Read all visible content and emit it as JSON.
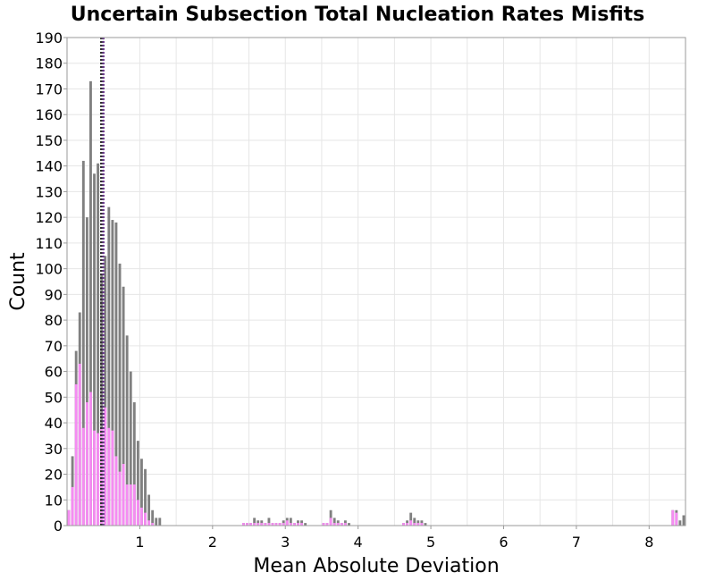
{
  "chart_data": {
    "type": "bar",
    "title": "Uncertain Subsection Total Nucleation Rates Misfits",
    "xlabel": "Mean Absolute Deviation",
    "ylabel": "Count",
    "xlim": [
      0,
      8.5
    ],
    "ylim": [
      0,
      190
    ],
    "x_ticks": [
      "1",
      "2",
      "3",
      "4",
      "5",
      "6",
      "7",
      "8"
    ],
    "y_ticks": [
      "0",
      "10",
      "20",
      "30",
      "40",
      "50",
      "60",
      "70",
      "80",
      "90",
      "100",
      "110",
      "120",
      "130",
      "140",
      "150",
      "160",
      "170",
      "180",
      "190"
    ],
    "grid": true,
    "legend": "none",
    "bin_width": 0.05,
    "colors": {
      "total": "#808080",
      "subset": "#f58cf2",
      "median_line_1": "#333333",
      "median_line_2": "#6a3a8c"
    },
    "vertical_lines": [
      0.47,
      0.5
    ],
    "series": [
      {
        "values": [
          {
            "x": 0.025,
            "y": 6
          },
          {
            "x": 0.075,
            "y": 27
          },
          {
            "x": 0.125,
            "y": 68
          },
          {
            "x": 0.175,
            "y": 83
          },
          {
            "x": 0.225,
            "y": 142
          },
          {
            "x": 0.275,
            "y": 120
          },
          {
            "x": 0.325,
            "y": 173
          },
          {
            "x": 0.375,
            "y": 137
          },
          {
            "x": 0.425,
            "y": 141
          },
          {
            "x": 0.475,
            "y": 98
          },
          {
            "x": 0.525,
            "y": 105
          },
          {
            "x": 0.575,
            "y": 124
          },
          {
            "x": 0.625,
            "y": 119
          },
          {
            "x": 0.675,
            "y": 118
          },
          {
            "x": 0.725,
            "y": 102
          },
          {
            "x": 0.775,
            "y": 93
          },
          {
            "x": 0.825,
            "y": 74
          },
          {
            "x": 0.875,
            "y": 60
          },
          {
            "x": 0.925,
            "y": 48
          },
          {
            "x": 0.975,
            "y": 33
          },
          {
            "x": 1.025,
            "y": 26
          },
          {
            "x": 1.075,
            "y": 22
          },
          {
            "x": 1.125,
            "y": 12
          },
          {
            "x": 1.175,
            "y": 6
          },
          {
            "x": 1.225,
            "y": 3
          },
          {
            "x": 1.275,
            "y": 3
          },
          {
            "x": 2.425,
            "y": 1
          },
          {
            "x": 2.475,
            "y": 1
          },
          {
            "x": 2.525,
            "y": 1
          },
          {
            "x": 2.575,
            "y": 3
          },
          {
            "x": 2.625,
            "y": 2
          },
          {
            "x": 2.675,
            "y": 2
          },
          {
            "x": 2.725,
            "y": 1
          },
          {
            "x": 2.775,
            "y": 3
          },
          {
            "x": 2.825,
            "y": 1
          },
          {
            "x": 2.875,
            "y": 1
          },
          {
            "x": 2.925,
            "y": 1
          },
          {
            "x": 2.975,
            "y": 2
          },
          {
            "x": 3.025,
            "y": 3
          },
          {
            "x": 3.075,
            "y": 3
          },
          {
            "x": 3.125,
            "y": 1
          },
          {
            "x": 3.175,
            "y": 2
          },
          {
            "x": 3.225,
            "y": 2
          },
          {
            "x": 3.275,
            "y": 1
          },
          {
            "x": 3.525,
            "y": 1
          },
          {
            "x": 3.575,
            "y": 1
          },
          {
            "x": 3.625,
            "y": 6
          },
          {
            "x": 3.675,
            "y": 3
          },
          {
            "x": 3.725,
            "y": 2
          },
          {
            "x": 3.775,
            "y": 1
          },
          {
            "x": 3.825,
            "y": 2
          },
          {
            "x": 3.875,
            "y": 1
          },
          {
            "x": 4.625,
            "y": 1
          },
          {
            "x": 4.675,
            "y": 2
          },
          {
            "x": 4.725,
            "y": 5
          },
          {
            "x": 4.775,
            "y": 3
          },
          {
            "x": 4.825,
            "y": 2
          },
          {
            "x": 4.875,
            "y": 2
          },
          {
            "x": 4.925,
            "y": 1
          },
          {
            "x": 8.325,
            "y": 6
          },
          {
            "x": 8.375,
            "y": 6
          },
          {
            "x": 8.425,
            "y": 2
          },
          {
            "x": 8.475,
            "y": 4
          }
        ]
      },
      {
        "values": [
          {
            "x": 0.025,
            "y": 6
          },
          {
            "x": 0.075,
            "y": 15
          },
          {
            "x": 0.125,
            "y": 55
          },
          {
            "x": 0.175,
            "y": 63
          },
          {
            "x": 0.225,
            "y": 38
          },
          {
            "x": 0.275,
            "y": 48
          },
          {
            "x": 0.325,
            "y": 52
          },
          {
            "x": 0.375,
            "y": 37
          },
          {
            "x": 0.425,
            "y": 36
          },
          {
            "x": 0.475,
            "y": 38
          },
          {
            "x": 0.525,
            "y": 46
          },
          {
            "x": 0.575,
            "y": 38
          },
          {
            "x": 0.625,
            "y": 37
          },
          {
            "x": 0.675,
            "y": 27
          },
          {
            "x": 0.725,
            "y": 21
          },
          {
            "x": 0.775,
            "y": 24
          },
          {
            "x": 0.825,
            "y": 16
          },
          {
            "x": 0.875,
            "y": 16
          },
          {
            "x": 0.925,
            "y": 16
          },
          {
            "x": 0.975,
            "y": 10
          },
          {
            "x": 1.025,
            "y": 7
          },
          {
            "x": 1.075,
            "y": 5
          },
          {
            "x": 1.125,
            "y": 2
          },
          {
            "x": 1.175,
            "y": 1
          },
          {
            "x": 2.425,
            "y": 1
          },
          {
            "x": 2.475,
            "y": 1
          },
          {
            "x": 2.525,
            "y": 1
          },
          {
            "x": 2.575,
            "y": 1
          },
          {
            "x": 2.625,
            "y": 1
          },
          {
            "x": 2.675,
            "y": 1
          },
          {
            "x": 2.725,
            "y": 1
          },
          {
            "x": 2.775,
            "y": 1
          },
          {
            "x": 2.825,
            "y": 1
          },
          {
            "x": 2.875,
            "y": 1
          },
          {
            "x": 2.925,
            "y": 1
          },
          {
            "x": 2.975,
            "y": 1
          },
          {
            "x": 3.025,
            "y": 2
          },
          {
            "x": 3.075,
            "y": 1
          },
          {
            "x": 3.125,
            "y": 1
          },
          {
            "x": 3.175,
            "y": 1
          },
          {
            "x": 3.225,
            "y": 1
          },
          {
            "x": 3.525,
            "y": 1
          },
          {
            "x": 3.575,
            "y": 1
          },
          {
            "x": 3.625,
            "y": 3
          },
          {
            "x": 3.675,
            "y": 1
          },
          {
            "x": 3.725,
            "y": 1
          },
          {
            "x": 3.775,
            "y": 1
          },
          {
            "x": 3.825,
            "y": 1
          },
          {
            "x": 4.625,
            "y": 1
          },
          {
            "x": 4.675,
            "y": 1
          },
          {
            "x": 4.725,
            "y": 2
          },
          {
            "x": 4.775,
            "y": 1
          },
          {
            "x": 4.825,
            "y": 1
          },
          {
            "x": 4.875,
            "y": 1
          },
          {
            "x": 8.325,
            "y": 6
          },
          {
            "x": 8.375,
            "y": 5
          }
        ]
      }
    ]
  }
}
